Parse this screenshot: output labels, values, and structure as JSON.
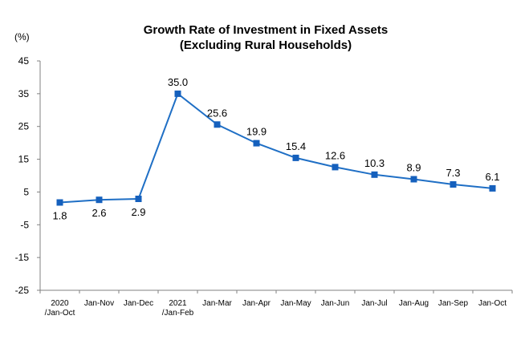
{
  "chart_data": {
    "type": "line",
    "title": "Growth Rate of Investment in Fixed Assets",
    "subtitle": "(Excluding Rural Households)",
    "ylabel": "(%)",
    "xlabel": "",
    "ylim": [
      -25,
      45
    ],
    "yticks": [
      "45",
      "35",
      "25",
      "15",
      "5",
      "-5",
      "-15",
      "-25"
    ],
    "categories": [
      [
        "2020",
        "/Jan-Oct"
      ],
      [
        "Jan-Nov"
      ],
      [
        "Jan-Dec"
      ],
      [
        "2021",
        "/Jan-Feb"
      ],
      [
        "Jan-Mar"
      ],
      [
        "Jan-Apr"
      ],
      [
        "Jan-May"
      ],
      [
        "Jan-Jun"
      ],
      [
        "Jan-Jul"
      ],
      [
        "Jan-Aug"
      ],
      [
        "Jan-Sep"
      ],
      [
        "Jan-Oct"
      ]
    ],
    "series": [
      {
        "values": [
          1.8,
          2.6,
          2.9,
          35.0,
          25.6,
          19.9,
          15.4,
          12.6,
          10.3,
          8.9,
          7.3,
          6.1
        ],
        "labels": [
          "1.8",
          "2.6",
          "2.9",
          "35.0",
          "25.6",
          "19.9",
          "15.4",
          "12.6",
          "10.3",
          "8.9",
          "7.3",
          "6.1"
        ],
        "label_position": [
          "below",
          "below",
          "below",
          "above",
          "above",
          "above",
          "above",
          "above",
          "above",
          "above",
          "above",
          "above"
        ]
      }
    ],
    "grid": false,
    "legend": "none",
    "line_color": "#1F6FC5",
    "marker_color": "#1560BD"
  }
}
